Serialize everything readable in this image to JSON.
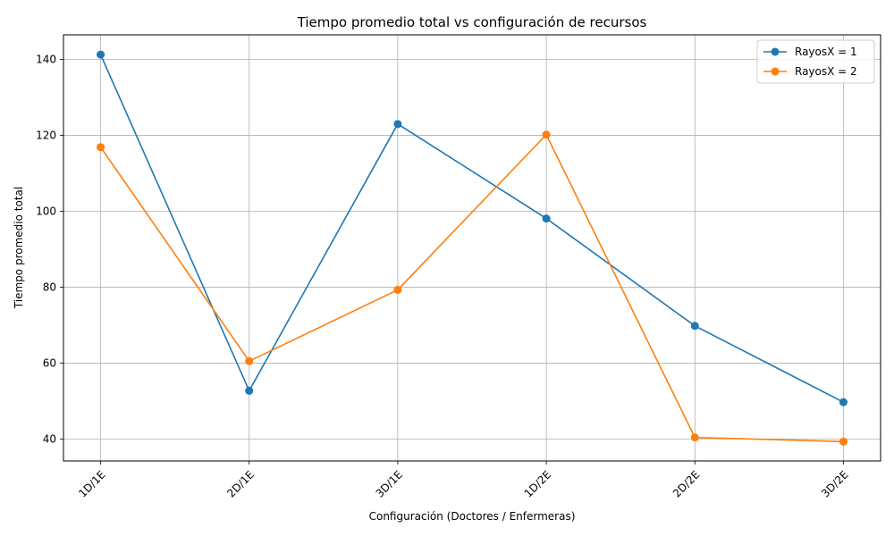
{
  "chart_data": {
    "type": "line",
    "title": "Tiempo promedio total vs configuración de recursos",
    "xlabel": "Configuración (Doctores / Enfermeras)",
    "ylabel": "Tiempo promedio total",
    "categories": [
      "1D/1E",
      "2D/1E",
      "3D/1E",
      "1D/2E",
      "2D/2E",
      "3D/2E"
    ],
    "yticks": [
      40,
      60,
      80,
      100,
      120,
      140
    ],
    "ylim": [
      34.2,
      146.5
    ],
    "grid": true,
    "legend_position": "top-right",
    "series": [
      {
        "name": "RayosX = 1",
        "color": "#1f77b4",
        "values": [
          141.3,
          52.7,
          123.0,
          98.1,
          69.8,
          49.7
        ]
      },
      {
        "name": "RayosX = 2",
        "color": "#ff7f0e",
        "values": [
          116.9,
          60.5,
          79.3,
          120.2,
          40.4,
          39.3
        ]
      }
    ]
  }
}
